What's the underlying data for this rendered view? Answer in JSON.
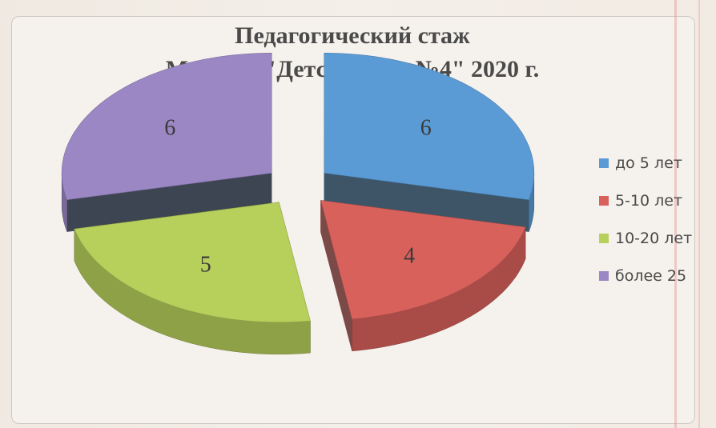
{
  "chart_data": {
    "type": "pie",
    "style": "3d-exploded",
    "title_lines": [
      "Педагогический стаж",
      "МАДОУ \"Детский сад №4\" 2020 г."
    ],
    "categories": [
      "до 5 лет",
      "5-10 лет",
      "10-20 лет",
      "более 25"
    ],
    "values": [
      6,
      4,
      5,
      6
    ],
    "data_labels": [
      "6",
      "4",
      "5",
      "6"
    ],
    "colors": [
      "#5b9bd5",
      "#d9615c",
      "#b7cf5b",
      "#9b87c4"
    ],
    "side_colors": [
      "#3d5566",
      "#7a4a48",
      "#9bb048",
      "#3d4552"
    ],
    "legend": "right"
  }
}
